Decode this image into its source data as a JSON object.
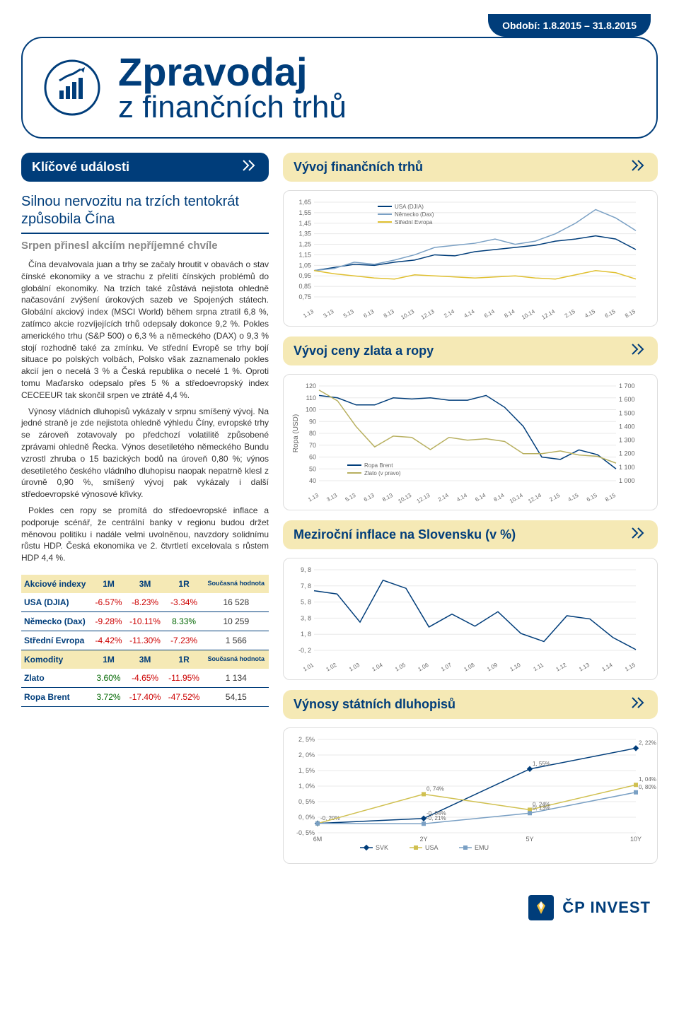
{
  "period_label": "Období: 1.8.2015 – 31.8.2015",
  "header": {
    "main": "Zpravodaj",
    "sub": "z finančních trhů"
  },
  "left": {
    "section_title": "Klíčové události",
    "headline": "Silnou nervozitu na trzích tentokrát způsobila Čína",
    "subheadline": "Srpen přinesl akciím nepříjemné chvíle",
    "paragraphs": [
      "Čína devalvovala juan a trhy se začaly hroutit v obavách o stav čínské ekonomiky a ve strachu z přelití čínských problémů do globální ekonomiky. Na trzích také zůstává nejistota ohledně načasování zvýšení úrokových sazeb ve Spojených státech. Globální akciový index (MSCI World) během srpna ztratil 6,8 %, zatímco akcie rozvíjejících trhů odepsaly dokonce 9,2 %. Pokles amerického trhu (S&P 500) o 6,3 % a německého (DAX) o 9,3 % stojí rozhodně také za zmínku. Ve střední Evropě se trhy bojí situace po polských volbách, Polsko však zaznamenalo pokles akcií jen o necelá 3 % a Česká republika o necelé 1 %. Oproti tomu Maďarsko odepsalo přes 5 % a středoevropský index CECEEUR tak skončil srpen ve ztrátě 4,4 %.",
      "Výnosy vládních dluhopisů vykázaly v srpnu smíšený vývoj. Na jedné straně je zde nejistota ohledně výhledu Číny, evropské trhy se zároveň zotavovaly po předchozí volatilitě způsobené zprávami ohledně Řecka. Výnos desetiletého německého Bundu vzrostl zhruba o 15 bazických bodů na úroveň 0,80 %; výnos desetiletého českého vládního dluhopisu naopak nepatrně klesl z úrovně 0,90 %, smíšený vývoj pak vykázaly i další středoevropské výnosové křivky.",
      "Pokles cen ropy se promítá do středoevropské inflace a podporuje scénář, že centrální banky v regionu budou držet měnovou politiku i nadále velmi uvolněnou, navzdory solidnímu růstu HDP. Česká ekonomika ve 2. čtvrtletí excelovala s růstem HDP 4,4 %."
    ]
  },
  "idx_table": {
    "head1": [
      "Akciové indexy",
      "1M",
      "3M",
      "1R",
      "Současná hodnota"
    ],
    "rows1": [
      [
        "USA (DJIA)",
        "-6.57%",
        "-8.23%",
        "-3.34%",
        "16 528"
      ],
      [
        "Německo (Dax)",
        "-9.28%",
        "-10.11%",
        "8.33%",
        "10 259"
      ],
      [
        "Střední Evropa",
        "-4.42%",
        "-11.30%",
        "-7.23%",
        "1 566"
      ]
    ],
    "head2": [
      "Komodity",
      "1M",
      "3M",
      "1R",
      "Současná hodnota"
    ],
    "rows2": [
      [
        "Zlato",
        "3.60%",
        "-4.65%",
        "-11.95%",
        "1 134"
      ],
      [
        "Ropa Brent",
        "3.72%",
        "-17.40%",
        "-47.52%",
        "54,15"
      ]
    ]
  },
  "right": {
    "section1_title": "Vývoj finančních trhů",
    "section2_title": "Vývoj ceny zlata a ropy",
    "section3_title": "Meziroční inflace na Slovensku (v %)",
    "section4_title": "Výnosy státních dluhopisů"
  },
  "chart1": {
    "type": "line",
    "xlabels": [
      "1.13",
      "3.13",
      "5.13",
      "6.13",
      "8.13",
      "10.13",
      "12.13",
      "2.14",
      "4.14",
      "6.14",
      "8.14",
      "10.14",
      "12.14",
      "2.15",
      "4.15",
      "6.15",
      "8.15"
    ],
    "ylim": [
      0.75,
      1.65
    ],
    "ystep": 0.1,
    "legend": [
      "USA (DJIA)",
      "Německo (Dax)",
      "Střední Evropa"
    ],
    "colors": {
      "usa": "#003d7a",
      "dax": "#7aa0c4",
      "ce": "#e0c030",
      "grid": "#e8e8e8",
      "axis": "#999",
      "text": "#666"
    },
    "series": {
      "usa": [
        1.0,
        1.03,
        1.06,
        1.05,
        1.08,
        1.1,
        1.15,
        1.14,
        1.18,
        1.2,
        1.22,
        1.24,
        1.28,
        1.3,
        1.33,
        1.3,
        1.2
      ],
      "dax": [
        1.0,
        1.02,
        1.08,
        1.06,
        1.1,
        1.15,
        1.22,
        1.24,
        1.26,
        1.3,
        1.25,
        1.28,
        1.35,
        1.45,
        1.58,
        1.5,
        1.38
      ],
      "ce": [
        1.0,
        0.97,
        0.95,
        0.93,
        0.92,
        0.96,
        0.95,
        0.94,
        0.93,
        0.94,
        0.95,
        0.93,
        0.92,
        0.96,
        1.0,
        0.98,
        0.92
      ]
    },
    "font_size": 9
  },
  "chart2": {
    "type": "line-dual",
    "xlabels": [
      "1.13",
      "3.13",
      "5.13",
      "6.13",
      "8.13",
      "10.13",
      "12.13",
      "2.14",
      "4.14",
      "6.14",
      "8.14",
      "10.14",
      "12.14",
      "2.15",
      "4.15",
      "6.15",
      "8.15"
    ],
    "y1lim": [
      40,
      120
    ],
    "y1step": 10,
    "y1label": "Ropa (USD)",
    "y2lim": [
      1000,
      1700
    ],
    "y2step": 100,
    "legend": [
      "Ropa Brent",
      "Zlato (v pravo)"
    ],
    "colors": {
      "ropa": "#003d7a",
      "zlato": "#b8b060",
      "grid": "#e8e8e8",
      "axis": "#999",
      "text": "#666"
    },
    "series": {
      "ropa": [
        112,
        110,
        104,
        104,
        110,
        109,
        110,
        108,
        108,
        112,
        102,
        86,
        60,
        58,
        66,
        62,
        50
      ],
      "zlato": [
        1670,
        1590,
        1400,
        1250,
        1330,
        1320,
        1230,
        1320,
        1300,
        1310,
        1290,
        1200,
        1200,
        1220,
        1190,
        1180,
        1130
      ]
    },
    "font_size": 9
  },
  "chart3": {
    "type": "line",
    "xlabels": [
      "1.01",
      "1.02",
      "1.03",
      "1.04",
      "1.05",
      "1.06",
      "1.07",
      "1.08",
      "1.09",
      "1.10",
      "1.11",
      "1.12",
      "1.13",
      "1.14",
      "1.15"
    ],
    "ylim": [
      -0.2,
      9.8
    ],
    "ystep": 2.0,
    "colors": {
      "line": "#003d7a",
      "grid": "#e8e8e8",
      "axis": "#999",
      "text": "#666"
    },
    "series": [
      7.2,
      6.8,
      3.3,
      8.5,
      7.5,
      2.7,
      4.3,
      2.8,
      4.6,
      1.9,
      0.9,
      4.1,
      3.7,
      1.4,
      -0.1
    ],
    "font_size": 9
  },
  "chart4": {
    "type": "yield-curve",
    "xlabels": [
      "6M",
      "2Y",
      "5Y",
      "10Y"
    ],
    "ylim": [
      -0.5,
      2.5
    ],
    "ystep": 0.5,
    "legend": [
      "SVK",
      "USA",
      "EMU"
    ],
    "colors": {
      "svk": "#003d7a",
      "usa": "#d0c050",
      "emu": "#7aa0c4",
      "grid": "#e8e8e8",
      "axis": "#999",
      "text": "#666",
      "label": "#666"
    },
    "series": {
      "svk": [
        -0.2,
        -0.04,
        1.55,
        2.22
      ],
      "usa": [
        -0.2,
        0.74,
        0.24,
        1.04
      ],
      "emu": [
        -0.2,
        -0.21,
        0.13,
        0.8
      ]
    },
    "point_labels": {
      "svk": [
        "-0, 20%",
        "-0, 04%",
        "1, 55%",
        "2, 22%"
      ],
      "usa": [
        "",
        "0, 74%",
        "0, 24%",
        "1, 04%"
      ],
      "emu": [
        "",
        "-0, 21%",
        "0, 13%",
        "0, 80%"
      ]
    },
    "font_size": 9
  },
  "footer": {
    "brand": "ČP INVEST"
  }
}
